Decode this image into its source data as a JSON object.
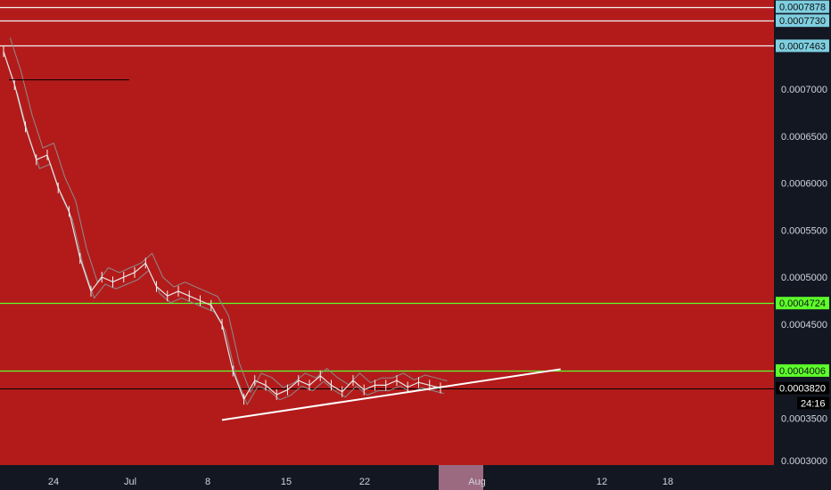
{
  "chart_data": {
    "type": "line",
    "title": "",
    "xlabel": "",
    "ylabel": "",
    "x_tick_labels": [
      "24",
      "Jul",
      "8",
      "15",
      "22",
      "Aug",
      "12",
      "18"
    ],
    "x_range_days": [
      -10,
      59
    ],
    "ylim": [
      0.0003,
      0.000795
    ],
    "y_ticks": [
      {
        "value": 0.00035,
        "label": "0.0003500"
      },
      {
        "value": 0.0004,
        "label": "0.0004000"
      },
      {
        "value": 0.00045,
        "label": "0.0004500"
      },
      {
        "value": 0.0005,
        "label": "0.0005000"
      },
      {
        "value": 0.00055,
        "label": "0.0005500"
      },
      {
        "value": 0.0006,
        "label": "0.0006000"
      },
      {
        "value": 0.00065,
        "label": "0.0006500"
      },
      {
        "value": 0.0007,
        "label": "0.0007000"
      },
      {
        "value": 0.0003,
        "label": "0.0003000"
      }
    ],
    "horizontal_levels": [
      {
        "value": 0.0007878,
        "label": "0.0007878",
        "color": "#f2f2f2",
        "tag_bg": "#7ecfe0"
      },
      {
        "value": 0.000773,
        "label": "0.0007730",
        "color": "#f2f2f2",
        "tag_bg": "#7ecfe0"
      },
      {
        "value": 0.0007463,
        "label": "0.0007463",
        "color": "#f2f2f2",
        "tag_bg": "#7ecfe0"
      },
      {
        "value": 0.0004724,
        "label": "0.0004724",
        "color": "#5cff2b",
        "tag_bg": "#5cff2b"
      },
      {
        "value": 0.0004006,
        "label": "0.0004006",
        "color": "#5cff2b",
        "tag_bg": "#5cff2b"
      },
      {
        "value": 0.000382,
        "label": "0.0003820",
        "color": "#000000",
        "tag_bg": "#000000"
      }
    ],
    "countdown_label": "24:16",
    "series": [
      {
        "x": [
          -10,
          -9,
          -8,
          -7,
          -6,
          -5,
          -4,
          -3,
          -2,
          -1,
          0,
          1,
          2,
          3,
          4,
          5,
          6,
          7,
          8,
          9,
          10,
          11,
          12,
          13,
          14,
          15,
          16,
          17,
          18,
          19,
          20,
          21,
          22,
          23,
          24,
          25,
          26,
          27,
          28,
          29,
          30
        ],
        "y": [
          0.00074,
          0.000705,
          0.00066,
          0.000625,
          0.00063,
          0.000595,
          0.00057,
          0.00052,
          0.000485,
          0.0005,
          0.000495,
          0.0005,
          0.000505,
          0.000515,
          0.00049,
          0.00048,
          0.000485,
          0.00048,
          0.000475,
          0.00047,
          0.00045,
          0.0004,
          0.00037,
          0.00039,
          0.000385,
          0.000375,
          0.00038,
          0.00039,
          0.000385,
          0.000395,
          0.000385,
          0.000378,
          0.00039,
          0.00038,
          0.000385,
          0.000385,
          0.00039,
          0.000383,
          0.000388,
          0.000385,
          0.000382
        ],
        "color": "#e6e6e6"
      }
    ],
    "trendline": {
      "x": [
        10,
        41
      ],
      "y": [
        0.000348,
        0.000402
      ],
      "color": "#ffffff"
    },
    "short_black_line": {
      "x": [
        -9.5,
        1.5
      ],
      "y": 0.00071
    },
    "colors": {
      "plot_bg": "#b31b1b",
      "axis_bg": "#131722",
      "text": "#d1d4dc"
    }
  }
}
